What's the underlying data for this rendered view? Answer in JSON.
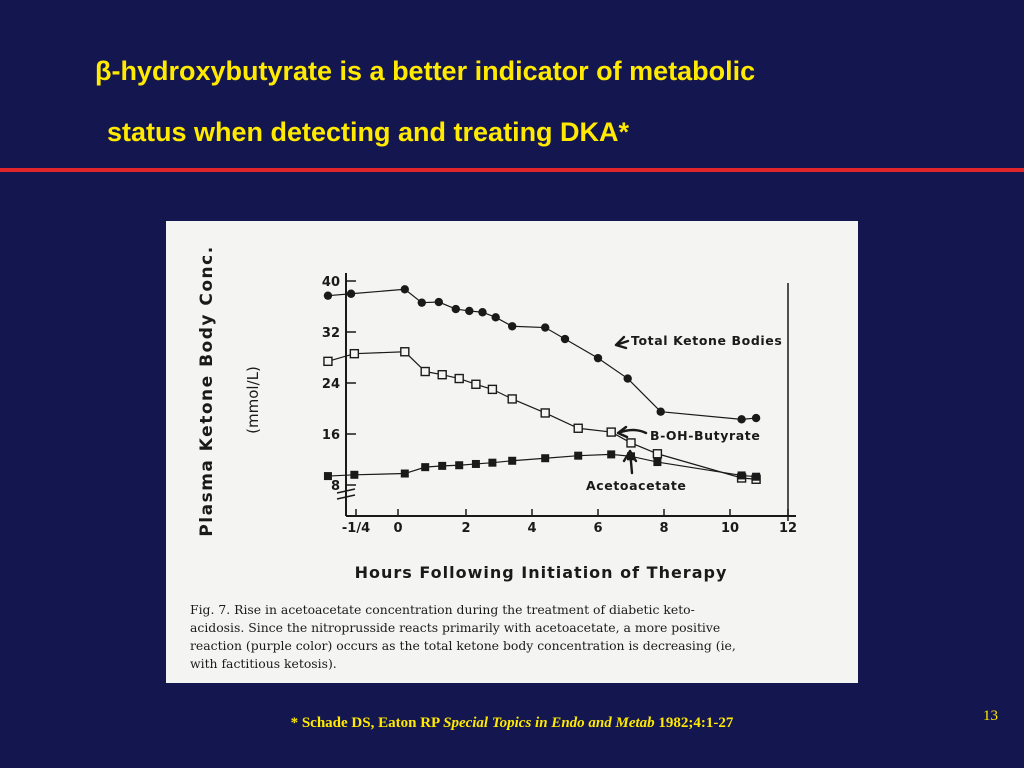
{
  "title": {
    "line1": "β-hydroxybutyrate is a better indicator of metabolic",
    "line2": "status when detecting and treating DKA*"
  },
  "colors": {
    "background": "#14164f",
    "title": "#ffea00",
    "rule": "#e0262a",
    "figure_bg": "#f4f4f2",
    "ink": "#1a1a1a"
  },
  "chart_data": {
    "type": "line",
    "xlabel": "Hours Following Initiation of Therapy",
    "ylabel": "Plasma Ketone Body Conc.",
    "yunit": "(mmol/L)",
    "xticks": [
      "-1/4",
      "0",
      "2",
      "4",
      "6",
      "8",
      "10",
      "12"
    ],
    "xtick_values": [
      -0.25,
      0,
      2,
      4,
      6,
      8,
      10,
      12
    ],
    "yticks": [
      "8",
      "16",
      "24",
      "32",
      "40"
    ],
    "ytick_values": [
      8,
      16,
      24,
      32,
      40
    ],
    "xlim": [
      -0.25,
      12
    ],
    "ylim": [
      8,
      40
    ],
    "grid": false,
    "series": [
      {
        "name": "Total Ketone Bodies",
        "marker": "filled-circle",
        "x": [
          -1.1,
          -0.4,
          0.2,
          0.7,
          1.2,
          1.7,
          2.1,
          2.5,
          2.9,
          3.4,
          4.4,
          5.0,
          6.0,
          6.9,
          7.9,
          10.4,
          10.9
        ],
        "y": [
          37.7,
          38.0,
          38.7,
          36.6,
          36.7,
          35.6,
          35.3,
          35.1,
          34.3,
          32.9,
          32.7,
          30.9,
          27.9,
          24.7,
          19.5,
          18.3,
          18.5
        ]
      },
      {
        "name": "B-OH-Butyrate",
        "marker": "open-square",
        "x": [
          -1.1,
          -0.3,
          0.2,
          0.8,
          1.3,
          1.8,
          2.3,
          2.8,
          3.4,
          4.4,
          5.4,
          6.4,
          7.0,
          7.8,
          10.4,
          10.9
        ],
        "y": [
          27.4,
          28.6,
          28.9,
          25.8,
          25.3,
          24.7,
          23.8,
          23.0,
          21.5,
          19.3,
          16.9,
          16.3,
          14.6,
          12.9,
          9.1,
          8.9
        ]
      },
      {
        "name": "Acetoacetate",
        "marker": "filled-square",
        "x": [
          -1.1,
          -0.3,
          0.2,
          0.8,
          1.3,
          1.8,
          2.3,
          2.8,
          3.4,
          4.4,
          5.4,
          6.4,
          7.0,
          7.8,
          10.4,
          10.9
        ],
        "y": [
          9.4,
          9.6,
          9.8,
          10.8,
          11.0,
          11.1,
          11.3,
          11.5,
          11.8,
          12.2,
          12.6,
          12.8,
          12.5,
          11.6,
          9.5,
          9.3
        ]
      }
    ]
  },
  "caption": "Fig. 7. Rise in acetoacetate concentration during the treatment of diabetic ketoacidosis. Since the nitroprusside reacts primarily with acetoacetate, a more positive reaction (purple color) occurs as the total ketone body concentration is decreasing (ie, with factitious ketosis).",
  "caption_lines": [
    "Fig. 7.  Rise in acetoacetate concentration during the treatment of diabetic keto-",
    "acidosis. Since the nitroprusside reacts primarily with acetoacetate, a more positive",
    "reaction (purple color) occurs as the total ketone body concentration is decreasing (ie,",
    "with factitious ketosis)."
  ],
  "citation": {
    "prefix": "* Schade DS, Eaton RP ",
    "journal": "Special Topics in Endo and Metab",
    "suffix": " 1982;4:1-27"
  },
  "page_number": "13"
}
